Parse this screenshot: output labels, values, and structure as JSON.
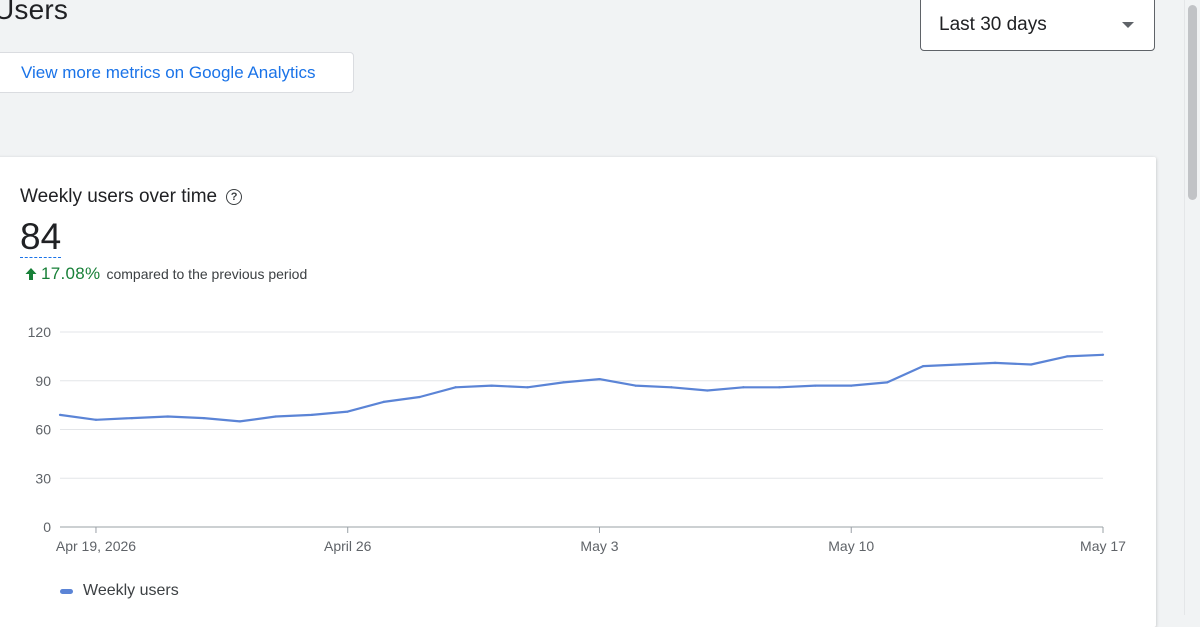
{
  "page": {
    "title": "Users"
  },
  "actions": {
    "metrics_link": "View more metrics on Google Analytics"
  },
  "date_range": {
    "selected": "Last 30 days"
  },
  "card": {
    "title": "Weekly users over time",
    "value": "84",
    "delta_value": "17.08%",
    "delta_text": "compared to the previous period",
    "legend_label": "Weekly users"
  },
  "colors": {
    "line": "#5b84d6",
    "accent": "#1a73e8",
    "positive": "#188038"
  },
  "chart_data": {
    "type": "line",
    "series": [
      {
        "name": "Weekly users",
        "values": [
          69,
          66,
          67,
          68,
          67,
          65,
          68,
          69,
          71,
          77,
          80,
          86,
          87,
          86,
          89,
          91,
          87,
          86,
          84,
          86,
          86,
          87,
          87,
          89,
          99,
          100,
          101,
          100,
          105,
          106
        ]
      }
    ],
    "ylim": [
      0,
      120
    ],
    "y_ticks": [
      "0",
      "30",
      "60",
      "90",
      "120"
    ],
    "x_ticks": [
      {
        "label": "Apr 19, 2026",
        "index": 1
      },
      {
        "label": "April 26",
        "index": 8
      },
      {
        "label": "May 3",
        "index": 15
      },
      {
        "label": "May 10",
        "index": 22
      },
      {
        "label": "May 17",
        "index": 29
      }
    ],
    "grid": true,
    "legend": "bottom-left"
  }
}
